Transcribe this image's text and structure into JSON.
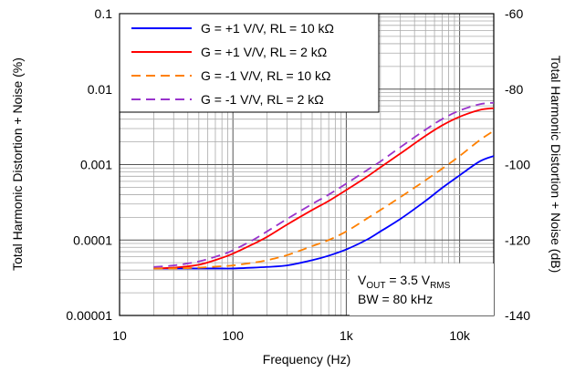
{
  "chart_data": {
    "type": "line",
    "xlabel": "Frequency (Hz)",
    "ylabel_left": "Total Harmonic Distortion + Noise (%)",
    "ylabel_right": "Total Harmonic Distortion + Noise (dB)",
    "x_scale": "log",
    "xlim": [
      10,
      20000
    ],
    "ylim_left": [
      1e-05,
      0.1
    ],
    "ylim_right": [
      -140,
      -60
    ],
    "x_ticks": [
      10,
      100,
      1000,
      10000
    ],
    "x_tick_labels": [
      "10",
      "100",
      "1k",
      "10k"
    ],
    "y_ticks_left": [
      0.1,
      0.01,
      0.001,
      0.0001,
      1e-05
    ],
    "y_tick_labels_left": [
      "0.1",
      "0.01",
      "0.001",
      "0.0001",
      "0.00001"
    ],
    "y_ticks_right": [
      -60,
      -80,
      -100,
      -120,
      -140
    ],
    "y_tick_labels_right": [
      "-60",
      "-80",
      "-100",
      "-120",
      "-140"
    ],
    "grid": true,
    "legend_position": "top-left",
    "annotation": {
      "line1_main": "V",
      "line1_sub": "OUT",
      "line1_mid": " = 3.5 V",
      "line1_sub2": "RMS",
      "line2": "BW = 80 kHz"
    },
    "series": [
      {
        "name": "G = +1 V/V, RL = 10 kΩ",
        "color": "#0000ff",
        "dash": "solid",
        "x": [
          20,
          30,
          50,
          80,
          100,
          150,
          200,
          300,
          500,
          700,
          1000,
          1500,
          2000,
          3000,
          5000,
          7000,
          10000,
          15000,
          20000
        ],
        "y": [
          4.2e-05,
          4.2e-05,
          4.2e-05,
          4.2e-05,
          4.2e-05,
          4.3e-05,
          4.4e-05,
          4.6e-05,
          5.4e-05,
          6.2e-05,
          7.5e-05,
          0.0001,
          0.00013,
          0.00019,
          0.00033,
          0.00049,
          0.00072,
          0.0011,
          0.0013
        ]
      },
      {
        "name": "G = +1 V/V, RL = 2 kΩ",
        "color": "#ff0000",
        "dash": "solid",
        "x": [
          20,
          30,
          50,
          80,
          100,
          150,
          200,
          300,
          500,
          700,
          1000,
          1500,
          2000,
          3000,
          5000,
          7000,
          10000,
          15000,
          20000
        ],
        "y": [
          4.2e-05,
          4.3e-05,
          4.7e-05,
          5.8e-05,
          6.6e-05,
          8.8e-05,
          0.00011,
          0.00016,
          0.00025,
          0.00033,
          0.00046,
          0.00068,
          0.00092,
          0.0014,
          0.0024,
          0.0033,
          0.0043,
          0.0053,
          0.0056
        ]
      },
      {
        "name": "G = -1 V/V, RL = 10 kΩ",
        "color": "#ff8000",
        "dash": "dashed",
        "x": [
          20,
          30,
          50,
          80,
          100,
          150,
          200,
          300,
          500,
          700,
          1000,
          1500,
          2000,
          3000,
          5000,
          7000,
          10000,
          15000,
          20000
        ],
        "y": [
          4.2e-05,
          4.2e-05,
          4.3e-05,
          4.5e-05,
          4.6e-05,
          5e-05,
          5.4e-05,
          6.3e-05,
          8.3e-05,
          0.0001,
          0.00013,
          0.00019,
          0.00025,
          0.00037,
          0.00062,
          0.00088,
          0.0013,
          0.0021,
          0.0028
        ]
      },
      {
        "name": "G = -1 V/V, RL = 2 kΩ",
        "color": "#9933cc",
        "dash": "dashed",
        "x": [
          20,
          30,
          50,
          80,
          100,
          150,
          200,
          300,
          500,
          700,
          1000,
          1500,
          2000,
          3000,
          5000,
          7000,
          10000,
          15000,
          20000
        ],
        "y": [
          4.4e-05,
          4.6e-05,
          5.2e-05,
          6.4e-05,
          7.3e-05,
          0.0001,
          0.00013,
          0.00019,
          0.0003,
          0.0004,
          0.00056,
          0.00083,
          0.0011,
          0.0017,
          0.0029,
          0.004,
          0.0052,
          0.0063,
          0.0066
        ]
      }
    ]
  }
}
